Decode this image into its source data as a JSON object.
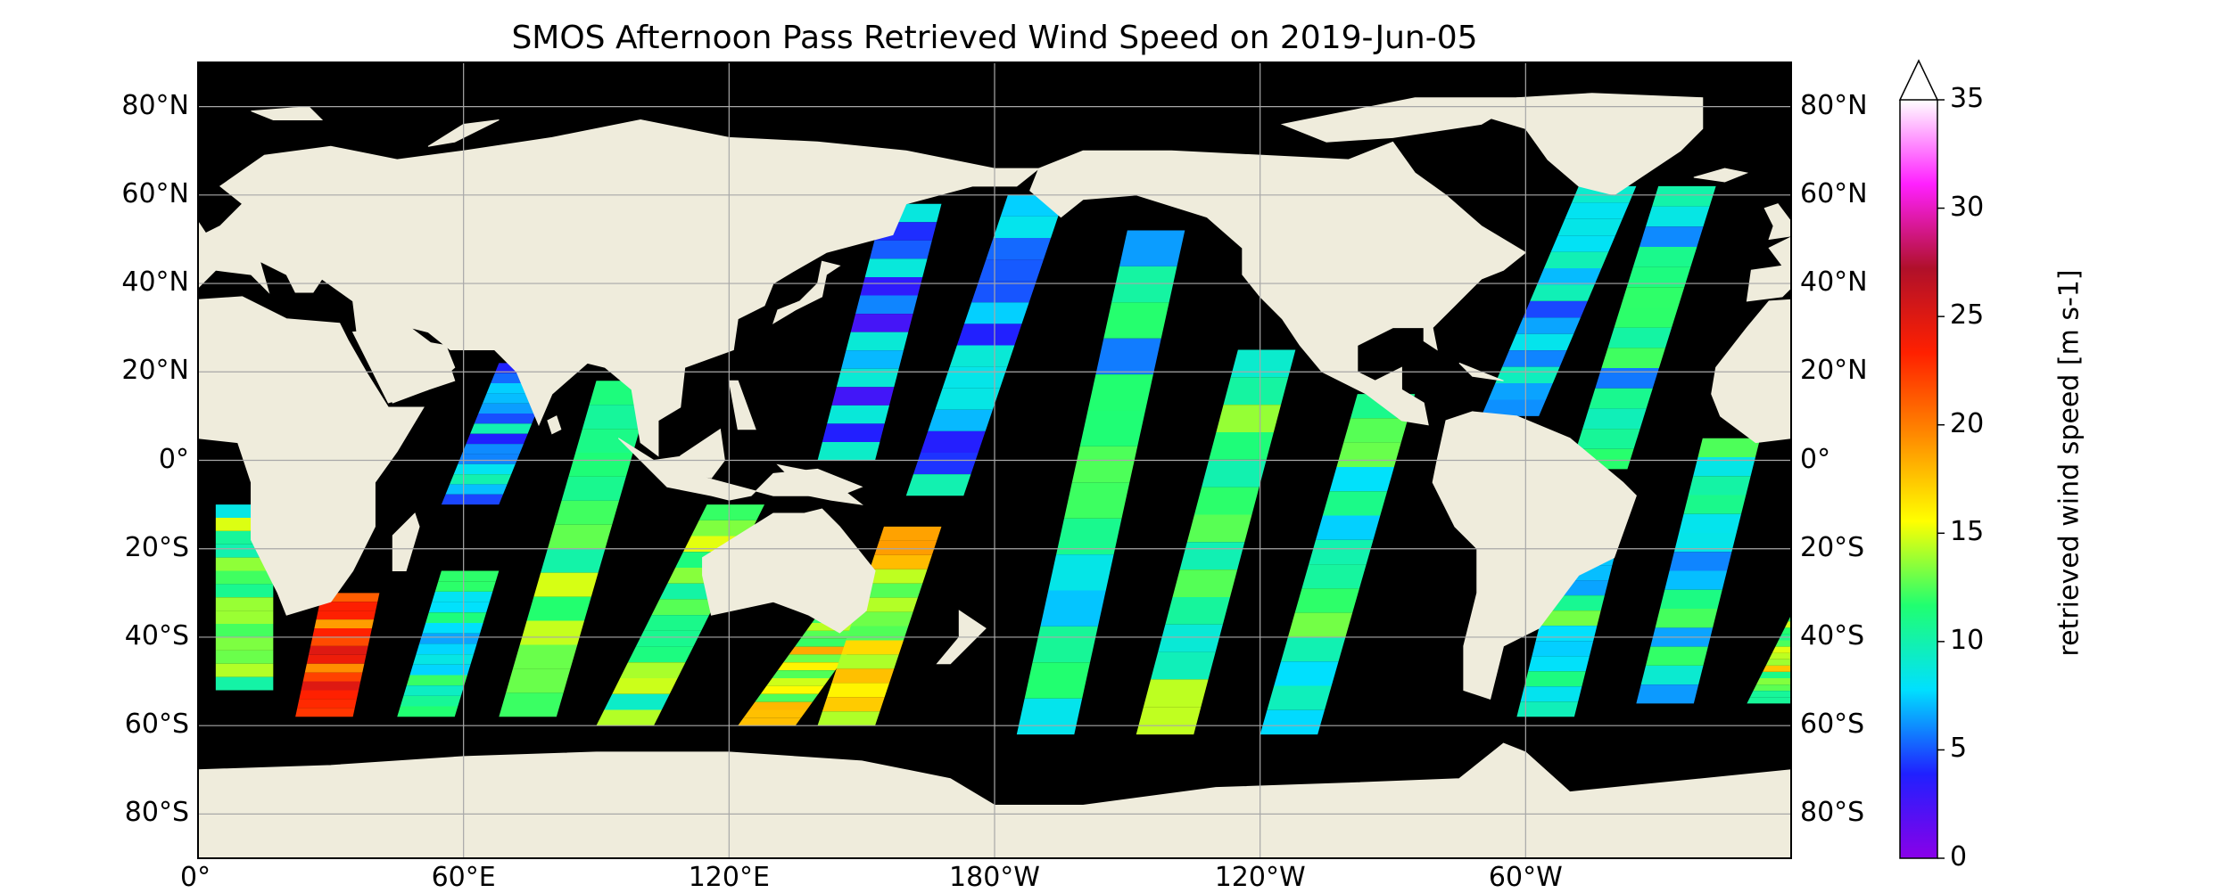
{
  "title": "SMOS Afternoon Pass Retrieved Wind Speed on 2019-Jun-05",
  "map": {
    "projection": "PlateCarree",
    "lon_range": [
      0,
      360
    ],
    "lat_range": [
      -90,
      90
    ],
    "ocean_background_color": "#000000",
    "land_color": "#efecdc",
    "gridlines": true
  },
  "axes": {
    "y_ticks_left": [
      "80°N",
      "60°N",
      "40°N",
      "20°N",
      "0°",
      "20°S",
      "40°S",
      "60°S",
      "80°S"
    ],
    "y_ticks_right": [
      "80°N",
      "60°N",
      "40°N",
      "20°N",
      "0°",
      "20°S",
      "40°S",
      "60°S",
      "80°S"
    ],
    "x_ticks": [
      "0°",
      "60°E",
      "120°E",
      "180°W",
      "120°W",
      "60°W"
    ]
  },
  "colorbar": {
    "label": "retrieved wind speed [m s-1]",
    "ticks": [
      "0",
      "5",
      "10",
      "15",
      "20",
      "25",
      "30",
      "35"
    ],
    "range": [
      0,
      35
    ],
    "extend": "max",
    "colors": [
      "#8a00e8",
      "#2020ff",
      "#00e0ff",
      "#20ff70",
      "#ffff00",
      "#ff8c00",
      "#ff2000",
      "#b0102a",
      "#ff20ff",
      "#ffffff"
    ]
  },
  "chart_data": {
    "type": "heatmap",
    "title": "SMOS Afternoon Pass Retrieved Wind Speed on 2019-Jun-05",
    "variable": "retrieved wind speed [m s-1]",
    "value_range": [
      0,
      35
    ],
    "swaths": [
      {
        "lon_start_top": 4,
        "lon_start_bottom": 4,
        "lat_top": -10,
        "lat_bottom": -52,
        "typical_speed": 12
      },
      {
        "lon_start_top": 28,
        "lon_start_bottom": 22,
        "lat_top": -30,
        "lat_bottom": -58,
        "typical_speed": 22
      },
      {
        "lon_start_top": 55,
        "lon_start_bottom": 45,
        "lat_top": -25,
        "lat_bottom": -58,
        "typical_speed": 9
      },
      {
        "lon_start_top": 68,
        "lon_start_bottom": 55,
        "lat_top": 22,
        "lat_bottom": -10,
        "typical_speed": 7
      },
      {
        "lon_start_top": 90,
        "lon_start_bottom": 68,
        "lat_top": 18,
        "lat_bottom": -58,
        "typical_speed": 12
      },
      {
        "lon_start_top": 115,
        "lon_start_bottom": 90,
        "lat_top": -10,
        "lat_bottom": -60,
        "typical_speed": 12
      },
      {
        "lon_start_top": 140,
        "lon_start_bottom": 122,
        "lat_top": -35,
        "lat_bottom": -60,
        "typical_speed": 15
      },
      {
        "lon_start_top": 155,
        "lon_start_bottom": 140,
        "lat_top": -15,
        "lat_bottom": -60,
        "typical_speed": 16
      },
      {
        "lon_start_top": 155,
        "lon_start_bottom": 140,
        "lat_top": 58,
        "lat_bottom": 0,
        "typical_speed": 6
      },
      {
        "lon_start_top": 183,
        "lon_start_bottom": 160,
        "lat_top": 60,
        "lat_bottom": -8,
        "typical_speed": 7
      },
      {
        "lon_start_top": 210,
        "lon_start_bottom": 185,
        "lat_top": 52,
        "lat_bottom": -62,
        "typical_speed": 9
      },
      {
        "lon_start_top": 235,
        "lon_start_bottom": 212,
        "lat_top": 25,
        "lat_bottom": -62,
        "typical_speed": 11
      },
      {
        "lon_start_top": 262,
        "lon_start_bottom": 240,
        "lat_top": 15,
        "lat_bottom": -62,
        "typical_speed": 10
      },
      {
        "lon_start_top": 312,
        "lon_start_bottom": 290,
        "lat_top": 62,
        "lat_bottom": 10,
        "typical_speed": 8
      },
      {
        "lon_start_top": 330,
        "lon_start_bottom": 310,
        "lat_top": 62,
        "lat_bottom": -2,
        "typical_speed": 9
      },
      {
        "lon_start_top": 310,
        "lon_start_bottom": 298,
        "lat_top": -10,
        "lat_bottom": -58,
        "typical_speed": 10
      },
      {
        "lon_start_top": 340,
        "lon_start_bottom": 325,
        "lat_top": 5,
        "lat_bottom": -55,
        "typical_speed": 9
      },
      {
        "lon_start_top": 360,
        "lon_start_bottom": 350,
        "lat_top": -35,
        "lat_bottom": -55,
        "typical_speed": 14
      }
    ]
  }
}
